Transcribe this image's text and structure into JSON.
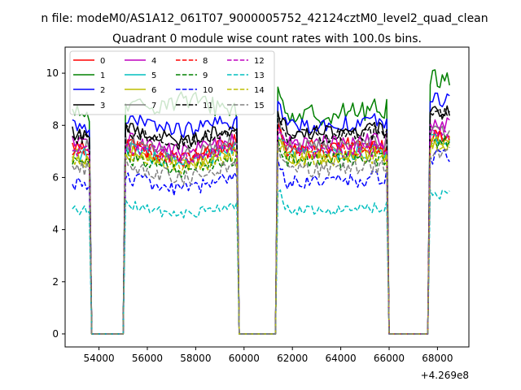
{
  "figure": {
    "suptitle": "n file: modeM0/AS1A12_061T07_9000005752_42124cztM0_level2_quad_clean"
  },
  "chart_data": {
    "type": "line",
    "title": "Quadrant 0 module wise count rates with 100.0s bins.",
    "xlabel": "",
    "ylabel": "",
    "x_offset_label": "+4.269e8",
    "xlim": [
      52600,
      69300
    ],
    "ylim": [
      -0.5,
      11
    ],
    "xticks": [
      54000,
      56000,
      58000,
      60000,
      62000,
      64000,
      66000,
      68000
    ],
    "xtick_labels": [
      "54000",
      "56000",
      "58000",
      "60000",
      "62000",
      "64000",
      "66000",
      "68000"
    ],
    "yticks": [
      0,
      2,
      4,
      6,
      8,
      10
    ],
    "ytick_labels": [
      "0",
      "2",
      "4",
      "6",
      "8",
      "10"
    ],
    "grid": false,
    "legend": {
      "placement": "top-left",
      "columns": 4
    },
    "x_range": {
      "start": 52900,
      "end": 68500,
      "step": 100
    },
    "gaps": [
      [
        53650,
        55100
      ],
      [
        59750,
        61350
      ],
      [
        65900,
        67650
      ]
    ],
    "series": [
      {
        "name": "0",
        "color": "#ff0000",
        "dash": "solid",
        "level": 7.2,
        "noise": 0.3,
        "seg_trend": [
          0.0,
          -0.8,
          0.3
        ]
      },
      {
        "name": "1",
        "color": "#008000",
        "dash": "solid",
        "level": 8.4,
        "noise": 0.4,
        "seg_trend": [
          0.0,
          0.4,
          1.4
        ]
      },
      {
        "name": "2",
        "color": "#0000ff",
        "dash": "solid",
        "level": 8.0,
        "noise": 0.3,
        "seg_trend": [
          0.0,
          -0.4,
          1.0
        ]
      },
      {
        "name": "3",
        "color": "#000000",
        "dash": "solid",
        "level": 7.7,
        "noise": 0.3,
        "seg_trend": [
          0.0,
          -0.5,
          0.8
        ]
      },
      {
        "name": "4",
        "color": "#bf00bf",
        "dash": "solid",
        "level": 7.3,
        "noise": 0.3,
        "seg_trend": [
          0.0,
          -0.5,
          0.7
        ]
      },
      {
        "name": "5",
        "color": "#00bfbf",
        "dash": "solid",
        "level": 6.9,
        "noise": 0.3,
        "seg_trend": [
          0.0,
          -0.6,
          0.6
        ]
      },
      {
        "name": "6",
        "color": "#bfbf00",
        "dash": "solid",
        "level": 6.8,
        "noise": 0.3,
        "seg_trend": [
          0.0,
          -0.6,
          0.5
        ]
      },
      {
        "name": "7",
        "color": "#808080",
        "dash": "solid",
        "level": 7.2,
        "noise": 0.3,
        "seg_trend": [
          0.0,
          -0.6,
          0.6
        ]
      },
      {
        "name": "8",
        "color": "#ff0000",
        "dash": "dashed",
        "level": 7.0,
        "noise": 0.3,
        "seg_trend": [
          0.0,
          -0.5,
          0.7
        ]
      },
      {
        "name": "9",
        "color": "#008000",
        "dash": "dashed",
        "level": 6.6,
        "noise": 0.3,
        "seg_trend": [
          0.0,
          -0.6,
          0.7
        ]
      },
      {
        "name": "10",
        "color": "#0000ff",
        "dash": "dashed",
        "level": 5.8,
        "noise": 0.3,
        "seg_trend": [
          0.0,
          -0.5,
          1.0
        ]
      },
      {
        "name": "11",
        "color": "#000000",
        "dash": "dashed",
        "level": 7.6,
        "noise": 0.3,
        "seg_trend": [
          0.0,
          -0.5,
          0.8
        ]
      },
      {
        "name": "12",
        "color": "#bf00bf",
        "dash": "dashed",
        "level": 7.0,
        "noise": 0.3,
        "seg_trend": [
          0.0,
          -0.5,
          0.6
        ]
      },
      {
        "name": "13",
        "color": "#00bfbf",
        "dash": "dashed",
        "level": 4.75,
        "noise": 0.2,
        "seg_trend": [
          0.0,
          -0.4,
          0.6
        ]
      },
      {
        "name": "14",
        "color": "#bfbf00",
        "dash": "dashed",
        "level": 6.7,
        "noise": 0.3,
        "seg_trend": [
          0.0,
          -0.6,
          0.6
        ]
      },
      {
        "name": "15",
        "color": "#808080",
        "dash": "dashed",
        "level": 6.3,
        "noise": 0.3,
        "seg_trend": [
          0.0,
          -0.6,
          0.6
        ]
      }
    ]
  }
}
